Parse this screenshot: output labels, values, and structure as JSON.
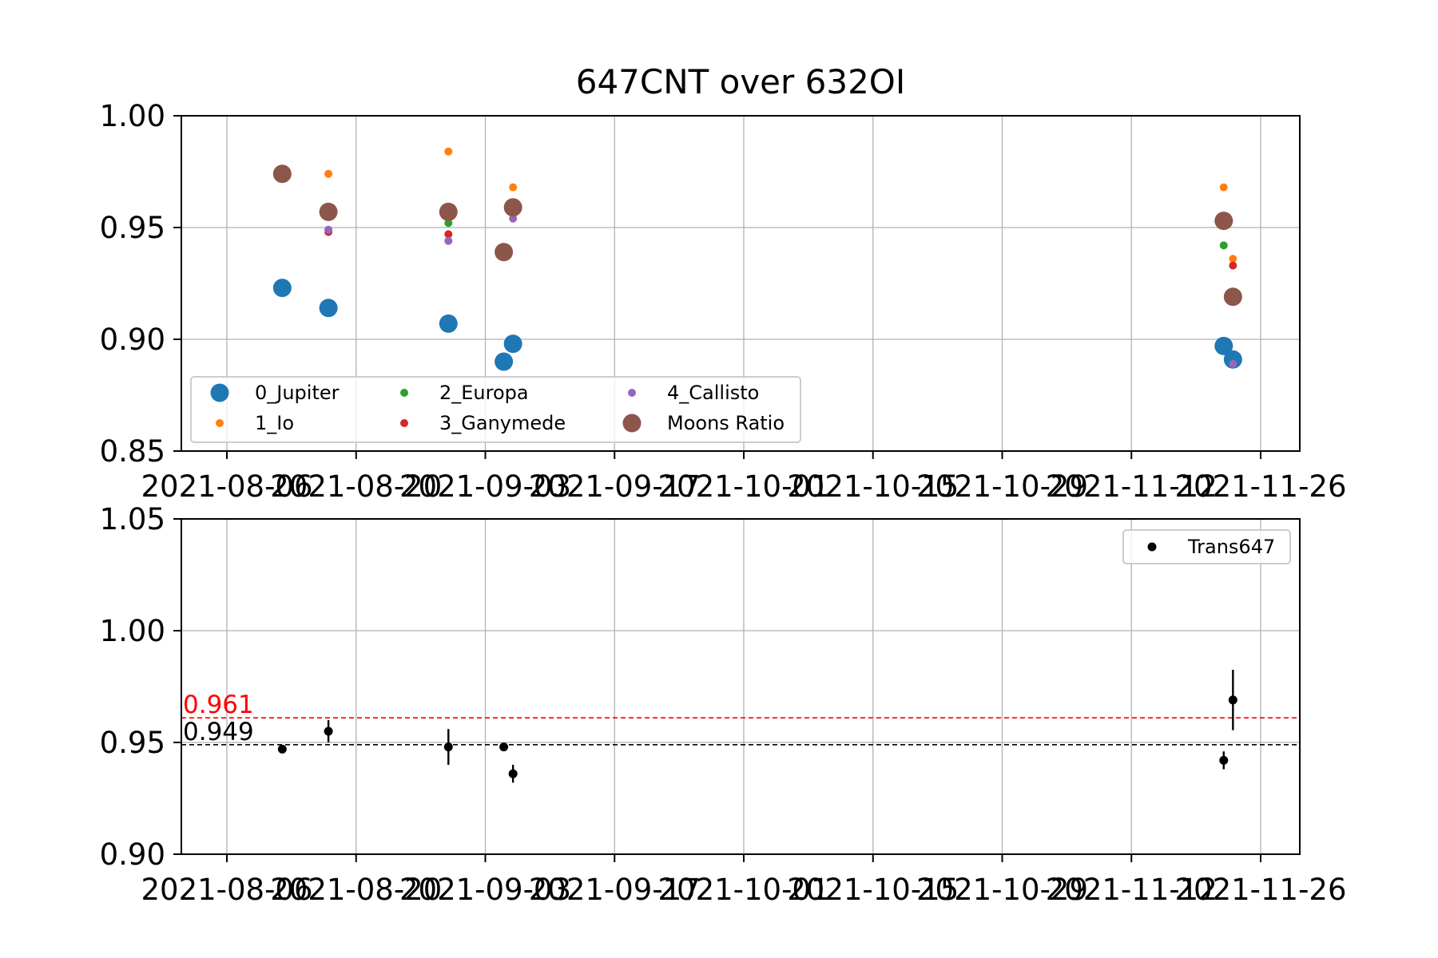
{
  "chart_data": [
    {
      "type": "scatter",
      "title": "647CNT over 632OI",
      "xlabel": "",
      "ylabel": "",
      "x_ticks": [
        "2021-08-06",
        "2021-08-20",
        "2021-09-03",
        "2021-09-17",
        "2021-10-01",
        "2021-10-15",
        "2021-10-29",
        "2021-11-12",
        "2021-11-26"
      ],
      "xlim": [
        "2021-08-01",
        "2021-12-01"
      ],
      "ylim": [
        0.85,
        1.0
      ],
      "y_ticks": [
        "0.85",
        "0.90",
        "0.95",
        "1.00"
      ],
      "grid": true,
      "legend": "lower-left",
      "legend_columns": 3,
      "series": [
        {
          "name": "0_Jupiter",
          "color": "#1f77b4",
          "marker_size": "large",
          "points": [
            {
              "x": "2021-08-12",
              "y": 0.923
            },
            {
              "x": "2021-08-17",
              "y": 0.914
            },
            {
              "x": "2021-08-30",
              "y": 0.907
            },
            {
              "x": "2021-09-05",
              "y": 0.89
            },
            {
              "x": "2021-09-06",
              "y": 0.898
            },
            {
              "x": "2021-11-22",
              "y": 0.897
            },
            {
              "x": "2021-11-23",
              "y": 0.891
            }
          ]
        },
        {
          "name": "1_Io",
          "color": "#ff7f0e",
          "marker_size": "small",
          "points": [
            {
              "x": "2021-08-17",
              "y": 0.974
            },
            {
              "x": "2021-08-30",
              "y": 0.984
            },
            {
              "x": "2021-09-06",
              "y": 0.968
            },
            {
              "x": "2021-11-22",
              "y": 0.968
            },
            {
              "x": "2021-11-23",
              "y": 0.936
            }
          ]
        },
        {
          "name": "2_Europa",
          "color": "#2ca02c",
          "marker_size": "small",
          "points": [
            {
              "x": "2021-08-30",
              "y": 0.952
            },
            {
              "x": "2021-11-22",
              "y": 0.942
            }
          ]
        },
        {
          "name": "3_Ganymede",
          "color": "#d62728",
          "marker_size": "small",
          "points": [
            {
              "x": "2021-08-17",
              "y": 0.948
            },
            {
              "x": "2021-08-30",
              "y": 0.947
            },
            {
              "x": "2021-11-23",
              "y": 0.933
            }
          ]
        },
        {
          "name": "4_Callisto",
          "color": "#9467bd",
          "marker_size": "small",
          "points": [
            {
              "x": "2021-08-17",
              "y": 0.949
            },
            {
              "x": "2021-08-30",
              "y": 0.944
            },
            {
              "x": "2021-09-06",
              "y": 0.954
            },
            {
              "x": "2021-11-23",
              "y": 0.889
            }
          ]
        },
        {
          "name": "Moons Ratio",
          "color": "#8c564b",
          "marker_size": "large",
          "points": [
            {
              "x": "2021-08-12",
              "y": 0.974
            },
            {
              "x": "2021-08-17",
              "y": 0.957
            },
            {
              "x": "2021-08-30",
              "y": 0.957
            },
            {
              "x": "2021-09-05",
              "y": 0.939
            },
            {
              "x": "2021-09-06",
              "y": 0.959
            },
            {
              "x": "2021-11-22",
              "y": 0.953
            },
            {
              "x": "2021-11-23",
              "y": 0.919
            }
          ]
        }
      ]
    },
    {
      "type": "scatter",
      "title": "",
      "xlabel": "",
      "ylabel": "",
      "x_ticks": [
        "2021-08-06",
        "2021-08-20",
        "2021-09-03",
        "2021-09-17",
        "2021-10-01",
        "2021-10-15",
        "2021-10-29",
        "2021-11-12",
        "2021-11-26"
      ],
      "xlim": [
        "2021-08-01",
        "2021-12-01"
      ],
      "ylim": [
        0.9,
        1.05
      ],
      "y_ticks": [
        "0.90",
        "0.95",
        "1.00",
        "1.05"
      ],
      "grid": true,
      "legend": "top-right",
      "series": [
        {
          "name": "Trans647",
          "color": "#000000",
          "error_bars": true,
          "points": [
            {
              "x": "2021-08-12",
              "y": 0.947,
              "err": 0.0015
            },
            {
              "x": "2021-08-17",
              "y": 0.955,
              "err": 0.005
            },
            {
              "x": "2021-08-30",
              "y": 0.948,
              "err": 0.008
            },
            {
              "x": "2021-09-05",
              "y": 0.948,
              "err": 0.0015
            },
            {
              "x": "2021-09-06",
              "y": 0.936,
              "err": 0.004
            },
            {
              "x": "2021-11-22",
              "y": 0.942,
              "err": 0.004
            },
            {
              "x": "2021-11-23",
              "y": 0.969,
              "err": 0.0135
            }
          ]
        }
      ],
      "reference_lines": [
        {
          "label": "0.961",
          "y": 0.961,
          "color": "#ff0000",
          "style": "dashed"
        },
        {
          "label": "0.949",
          "y": 0.949,
          "color": "#000000",
          "style": "dashed"
        }
      ]
    }
  ]
}
